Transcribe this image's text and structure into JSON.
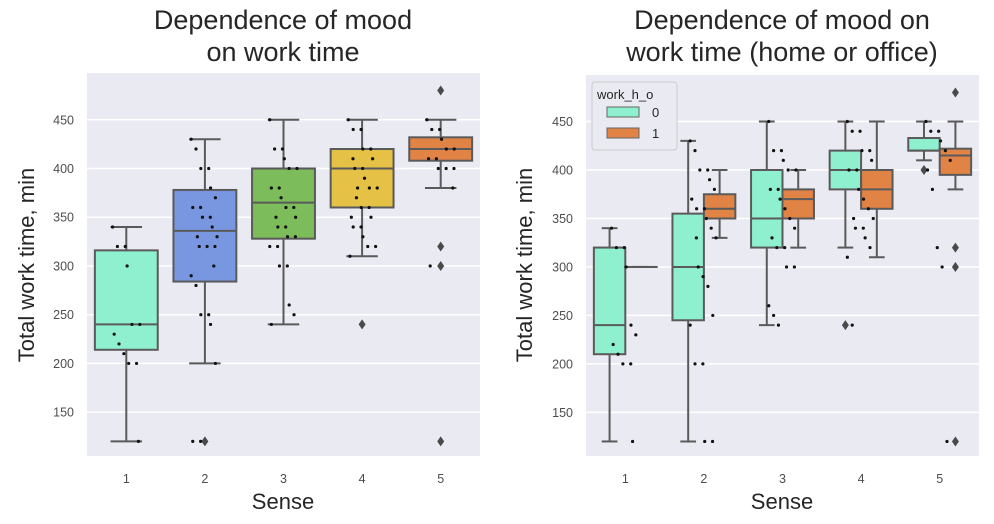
{
  "chart_data": [
    {
      "type": "boxplot",
      "title": "Dependence of mood on work time",
      "title_lines": [
        "Dependence of mood",
        "on work time"
      ],
      "xlabel": "Sense",
      "ylabel": "Total work time, min",
      "categories": [
        "1",
        "2",
        "3",
        "4",
        "5"
      ],
      "ylim": [
        105,
        498
      ],
      "yticks": [
        150,
        200,
        250,
        300,
        350,
        400,
        450
      ],
      "grid": true,
      "boxes": [
        {
          "category": "1",
          "color": "#8ef0cf",
          "whisker_low": 120,
          "q1": 214,
          "median": 240,
          "q3": 316,
          "whisker_high": 340,
          "outliers": []
        },
        {
          "category": "2",
          "color": "#7897e0",
          "whisker_low": 200,
          "q1": 284,
          "median": 336,
          "q3": 378,
          "whisker_high": 430,
          "outliers": [
            120
          ]
        },
        {
          "category": "3",
          "color": "#7cbc5a",
          "whisker_low": 240,
          "q1": 328,
          "median": 365,
          "q3": 400,
          "whisker_high": 450,
          "outliers": []
        },
        {
          "category": "4",
          "color": "#e5c145",
          "whisker_low": 310,
          "q1": 360,
          "median": 400,
          "q3": 420,
          "whisker_high": 450,
          "outliers": [
            240
          ]
        },
        {
          "category": "5",
          "color": "#e08344",
          "whisker_low": 380,
          "q1": 408,
          "median": 420,
          "q3": 432,
          "whisker_high": 450,
          "outliers": [
            480,
            320,
            300,
            120
          ]
        }
      ],
      "points": [
        {
          "category": "1",
          "values": [
            340,
            320,
            320,
            300,
            240,
            240,
            230,
            220,
            210,
            200,
            200,
            120
          ]
        },
        {
          "category": "2",
          "values": [
            430,
            420,
            400,
            400,
            380,
            370,
            360,
            360,
            350,
            350,
            340,
            330,
            330,
            320,
            320,
            320,
            300,
            290,
            280,
            250,
            250,
            240,
            200,
            120,
            120
          ]
        },
        {
          "category": "3",
          "values": [
            450,
            420,
            420,
            410,
            400,
            400,
            380,
            380,
            370,
            360,
            360,
            350,
            350,
            340,
            340,
            330,
            330,
            320,
            320,
            300,
            300,
            260,
            250,
            240
          ]
        },
        {
          "category": "4",
          "values": [
            450,
            440,
            440,
            420,
            420,
            410,
            410,
            400,
            400,
            390,
            380,
            380,
            380,
            370,
            360,
            360,
            350,
            350,
            340,
            340,
            330,
            320,
            320,
            310
          ]
        },
        {
          "category": "5",
          "values": [
            450,
            440,
            440,
            430,
            420,
            420,
            410,
            410,
            400,
            400,
            400,
            380,
            300
          ]
        }
      ]
    },
    {
      "type": "boxplot",
      "title": "Dependence of mood on work time (home or office)",
      "title_lines": [
        "Dependence of mood on",
        "work time (home or office)"
      ],
      "xlabel": "Sense",
      "ylabel": "Total work time, min",
      "categories": [
        "1",
        "2",
        "3",
        "4",
        "5"
      ],
      "ylim": [
        105,
        498
      ],
      "yticks": [
        150,
        200,
        250,
        300,
        350,
        400,
        450
      ],
      "grid": true,
      "legend": {
        "title": "work_h_o",
        "position": "top-left",
        "entries": [
          {
            "label": "0",
            "color": "#8ef0cf"
          },
          {
            "label": "1",
            "color": "#e08344"
          }
        ]
      },
      "series": [
        {
          "name": "0",
          "color": "#8ef0cf",
          "boxes": [
            {
              "category": "1",
              "whisker_low": 120,
              "q1": 210,
              "median": 240,
              "q3": 320,
              "whisker_high": 340,
              "outliers": []
            },
            {
              "category": "2",
              "whisker_low": 120,
              "q1": 245,
              "median": 300,
              "q3": 355,
              "whisker_high": 430,
              "outliers": []
            },
            {
              "category": "3",
              "whisker_low": 240,
              "q1": 320,
              "median": 350,
              "q3": 400,
              "whisker_high": 450,
              "outliers": []
            },
            {
              "category": "4",
              "whisker_low": 320,
              "q1": 380,
              "median": 400,
              "q3": 420,
              "whisker_high": 450,
              "outliers": [
                240
              ]
            },
            {
              "category": "5",
              "whisker_low": 410,
              "q1": 420,
              "median": 420,
              "q3": 433,
              "whisker_high": 450,
              "outliers": [
                400
              ]
            }
          ]
        },
        {
          "name": "1",
          "color": "#e08344",
          "boxes": [
            {
              "category": "1",
              "whisker_low": 300,
              "q1": 300,
              "median": 300,
              "q3": 300,
              "whisker_high": 300,
              "outliers": []
            },
            {
              "category": "2",
              "whisker_low": 330,
              "q1": 350,
              "median": 360,
              "q3": 375,
              "whisker_high": 400,
              "outliers": []
            },
            {
              "category": "3",
              "whisker_low": 320,
              "q1": 350,
              "median": 370,
              "q3": 380,
              "whisker_high": 400,
              "outliers": []
            },
            {
              "category": "4",
              "whisker_low": 310,
              "q1": 360,
              "median": 380,
              "q3": 400,
              "whisker_high": 450,
              "outliers": []
            },
            {
              "category": "5",
              "whisker_low": 380,
              "q1": 395,
              "median": 415,
              "q3": 422,
              "whisker_high": 450,
              "outliers": [
                480,
                320,
                300,
                120
              ]
            }
          ]
        }
      ],
      "points": [
        {
          "category": "1",
          "values": [
            340,
            320,
            320,
            300,
            240,
            230,
            220,
            210,
            200,
            200,
            120
          ]
        },
        {
          "category": "2",
          "values": [
            430,
            420,
            400,
            400,
            390,
            380,
            370,
            360,
            360,
            350,
            340,
            330,
            330,
            300,
            290,
            280,
            250,
            240,
            200,
            200,
            120,
            120
          ]
        },
        {
          "category": "3",
          "values": [
            450,
            420,
            420,
            410,
            400,
            400,
            380,
            380,
            370,
            360,
            350,
            340,
            330,
            320,
            320,
            300,
            300,
            260,
            250,
            240
          ]
        },
        {
          "category": "4",
          "values": [
            450,
            440,
            440,
            420,
            420,
            410,
            400,
            400,
            380,
            370,
            360,
            350,
            350,
            340,
            340,
            330,
            320,
            310,
            240
          ]
        },
        {
          "category": "5",
          "values": [
            450,
            440,
            440,
            430,
            420,
            410,
            400,
            380,
            320,
            300,
            120
          ]
        }
      ]
    }
  ]
}
